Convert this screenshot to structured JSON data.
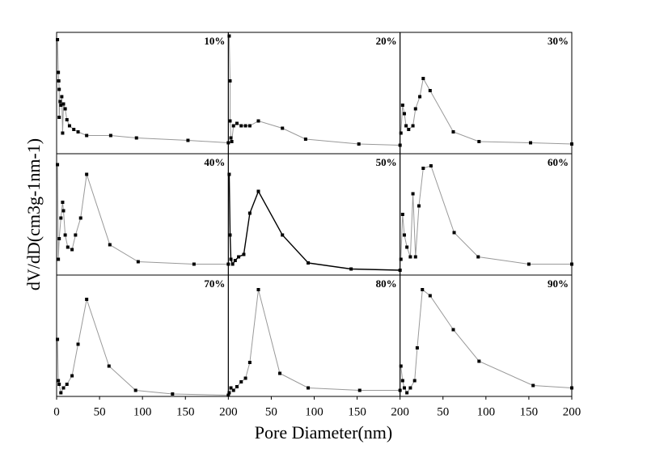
{
  "xlabel": "Pore Diameter(nm)",
  "ylabel": "dV/dD(cm3g-1nm-1)",
  "chart_data": [
    {
      "type": "line",
      "title": "10%",
      "color": "#999999",
      "marker_color": "#000000",
      "xlim": [
        0,
        200
      ],
      "ylim": [
        0,
        1
      ],
      "x": [
        1,
        2,
        2.5,
        3,
        3,
        4,
        5,
        6,
        7,
        8,
        10,
        12,
        15,
        20,
        25,
        35,
        63,
        93,
        153,
        200
      ],
      "values": [
        0.94,
        0.67,
        0.6,
        0.53,
        0.3,
        0.43,
        0.4,
        0.47,
        0.17,
        0.41,
        0.37,
        0.28,
        0.23,
        0.2,
        0.18,
        0.15,
        0.15,
        0.13,
        0.11,
        0.09
      ]
    },
    {
      "type": "line",
      "title": "20%",
      "color": "#999999",
      "marker_color": "#000000",
      "xlim": [
        0,
        200
      ],
      "ylim": [
        0,
        1
      ],
      "x": [
        1,
        2,
        2,
        3,
        4,
        6,
        10,
        15,
        20,
        25,
        35,
        63,
        90,
        152,
        200
      ],
      "values": [
        0.97,
        0.6,
        0.27,
        0.13,
        0.1,
        0.23,
        0.25,
        0.23,
        0.23,
        0.23,
        0.27,
        0.21,
        0.12,
        0.08,
        0.07
      ]
    },
    {
      "type": "line",
      "title": "30%",
      "color": "#999999",
      "marker_color": "#000000",
      "xlim": [
        0,
        200
      ],
      "ylim": [
        0,
        1
      ],
      "x": [
        1,
        3,
        5,
        7,
        10,
        15,
        18,
        23,
        27,
        35,
        62,
        92,
        152,
        200
      ],
      "values": [
        0.17,
        0.4,
        0.33,
        0.23,
        0.2,
        0.23,
        0.37,
        0.47,
        0.62,
        0.52,
        0.18,
        0.1,
        0.09,
        0.08
      ]
    },
    {
      "type": "line",
      "title": "40%",
      "color": "#999999",
      "marker_color": "#000000",
      "xlim": [
        0,
        200
      ],
      "ylim": [
        0,
        1
      ],
      "x": [
        1,
        2,
        3,
        5,
        7,
        8,
        10,
        13,
        18,
        22,
        28,
        35,
        62,
        95,
        160,
        200
      ],
      "values": [
        0.91,
        0.13,
        0.3,
        0.47,
        0.6,
        0.53,
        0.33,
        0.23,
        0.21,
        0.33,
        0.47,
        0.83,
        0.25,
        0.11,
        0.09,
        0.09
      ]
    },
    {
      "type": "line",
      "title": "50%",
      "color": "#000000",
      "marker_color": "#000000",
      "xlim": [
        0,
        200
      ],
      "ylim": [
        0,
        1
      ],
      "x": [
        1,
        2,
        3,
        5,
        8,
        12,
        18,
        25,
        35,
        63,
        93,
        143,
        200
      ],
      "values": [
        0.83,
        0.33,
        0.13,
        0.09,
        0.12,
        0.15,
        0.17,
        0.51,
        0.69,
        0.33,
        0.1,
        0.05,
        0.04
      ]
    },
    {
      "type": "line",
      "title": "60%",
      "color": "#999999",
      "marker_color": "#000000",
      "xlim": [
        0,
        200
      ],
      "ylim": [
        0,
        1
      ],
      "x": [
        1,
        3,
        5,
        8,
        12,
        15,
        18,
        22,
        27,
        36,
        63,
        91,
        150,
        200
      ],
      "values": [
        0.13,
        0.5,
        0.33,
        0.23,
        0.15,
        0.67,
        0.15,
        0.57,
        0.88,
        0.9,
        0.35,
        0.15,
        0.09,
        0.09
      ]
    },
    {
      "type": "line",
      "title": "70%",
      "color": "#999999",
      "marker_color": "#000000",
      "xlim": [
        0,
        200
      ],
      "ylim": [
        0,
        1
      ],
      "xticks": [
        0,
        50,
        100,
        150,
        200
      ],
      "x": [
        1,
        2,
        3,
        5,
        8,
        12,
        18,
        25,
        35,
        61,
        92,
        135,
        200
      ],
      "values": [
        0.47,
        0.13,
        0.1,
        0.03,
        0.07,
        0.1,
        0.17,
        0.43,
        0.8,
        0.25,
        0.05,
        0.02,
        0.01
      ]
    },
    {
      "type": "line",
      "title": "80%",
      "color": "#999999",
      "marker_color": "#000000",
      "xlim": [
        0,
        200
      ],
      "ylim": [
        0,
        1
      ],
      "xticks": [
        50,
        100,
        150,
        200
      ],
      "x": [
        1,
        3,
        6,
        10,
        15,
        20,
        25,
        35,
        60,
        93,
        153,
        200
      ],
      "values": [
        0.03,
        0.07,
        0.05,
        0.08,
        0.12,
        0.15,
        0.28,
        0.88,
        0.19,
        0.07,
        0.05,
        0.05
      ]
    },
    {
      "type": "line",
      "title": "90%",
      "color": "#999999",
      "marker_color": "#000000",
      "xlim": [
        0,
        200
      ],
      "ylim": [
        0,
        1
      ],
      "xticks": [
        50,
        100,
        150,
        200
      ],
      "x": [
        1,
        3,
        5,
        8,
        12,
        17,
        20,
        26,
        35,
        62,
        92,
        155,
        200
      ],
      "values": [
        0.25,
        0.13,
        0.07,
        0.03,
        0.07,
        0.13,
        0.4,
        0.88,
        0.83,
        0.55,
        0.29,
        0.09,
        0.07
      ]
    }
  ]
}
